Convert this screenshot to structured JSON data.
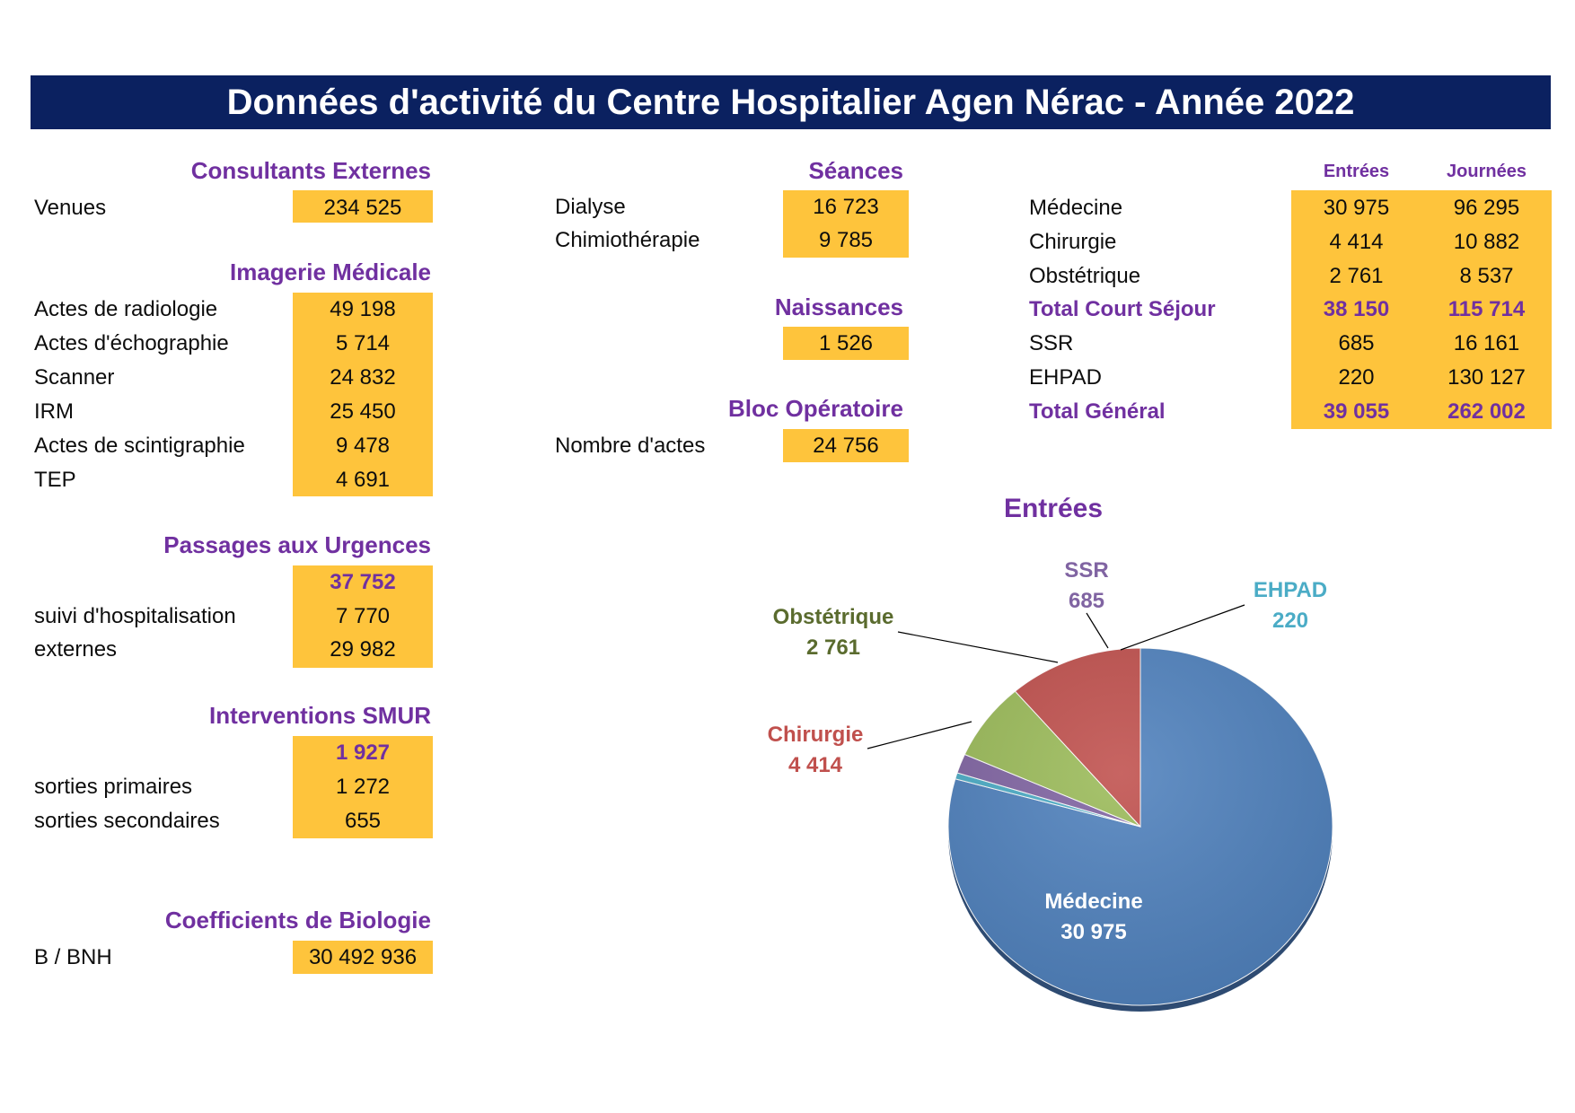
{
  "title": "Données d'activité du Centre Hospitalier Agen Nérac - Année 2022",
  "consultants": {
    "title": "Consultants Externes",
    "rows": [
      {
        "label": "Venues",
        "value": "234 525"
      }
    ]
  },
  "imagerie": {
    "title": "Imagerie Médicale",
    "rows": [
      {
        "label": "Actes de radiologie",
        "value": "49 198"
      },
      {
        "label": "Actes d'échographie",
        "value": "5 714"
      },
      {
        "label": "Scanner",
        "value": "24 832"
      },
      {
        "label": "IRM",
        "value": "25 450"
      },
      {
        "label": "Actes de scintigraphie",
        "value": "9 478"
      },
      {
        "label": "TEP",
        "value": "4 691"
      }
    ]
  },
  "urgences": {
    "title": "Passages aux Urgences",
    "total": "37 752",
    "rows": [
      {
        "label": "suivi d'hospitalisation",
        "value": "7 770"
      },
      {
        "label": "externes",
        "value": "29 982"
      }
    ]
  },
  "smur": {
    "title": "Interventions SMUR",
    "total": "1 927",
    "rows": [
      {
        "label": "sorties primaires",
        "value": "1 272"
      },
      {
        "label": "sorties secondaires",
        "value": "655"
      }
    ]
  },
  "biologie": {
    "title": "Coefficients de Biologie",
    "rows": [
      {
        "label": "B / BNH",
        "value": "30 492 936"
      }
    ]
  },
  "seances": {
    "title": "Séances",
    "rows": [
      {
        "label": "Dialyse",
        "value": "16 723"
      },
      {
        "label": "Chimiothérapie",
        "value": "9 785"
      }
    ]
  },
  "naissances": {
    "title": "Naissances",
    "value": "1 526"
  },
  "bloc": {
    "title": "Bloc Opératoire",
    "rows": [
      {
        "label": "Nombre d'actes",
        "value": "24 756"
      }
    ]
  },
  "sejours": {
    "col_entrees": "Entrées",
    "col_journees": "Journées",
    "rows": [
      {
        "label": "Médecine",
        "entrees": "30 975",
        "journees": "96 295"
      },
      {
        "label": "Chirurgie",
        "entrees": "4 414",
        "journees": "10 882"
      },
      {
        "label": "Obstétrique",
        "entrees": "2 761",
        "journees": "8 537"
      },
      {
        "label": "Total Court Séjour",
        "entrees": "38 150",
        "journees": "115 714"
      },
      {
        "label": "SSR",
        "entrees": "685",
        "journees": "16 161"
      },
      {
        "label": "EHPAD",
        "entrees": "220",
        "journees": "130 127"
      },
      {
        "label": "Total Général",
        "entrees": "39 055",
        "journees": "262 002"
      }
    ]
  },
  "colors": {
    "banner": "#0b2160",
    "accent": "#7030a0",
    "highlight": "#fec43c"
  },
  "chart_data": {
    "type": "pie",
    "title": "Entrées",
    "slices": [
      {
        "name": "Médecine",
        "value": 30975,
        "label": "30 975",
        "color": "#4f81bd"
      },
      {
        "name": "EHPAD",
        "value": 220,
        "label": "220",
        "color": "#4bacc6"
      },
      {
        "name": "SSR",
        "value": 685,
        "label": "685",
        "color": "#8064a2"
      },
      {
        "name": "Obstétrique",
        "value": 2761,
        "label": "2 761",
        "color": "#9bbb59"
      },
      {
        "name": "Chirurgie",
        "value": 4414,
        "label": "4 414",
        "color": "#c0504d"
      }
    ]
  }
}
